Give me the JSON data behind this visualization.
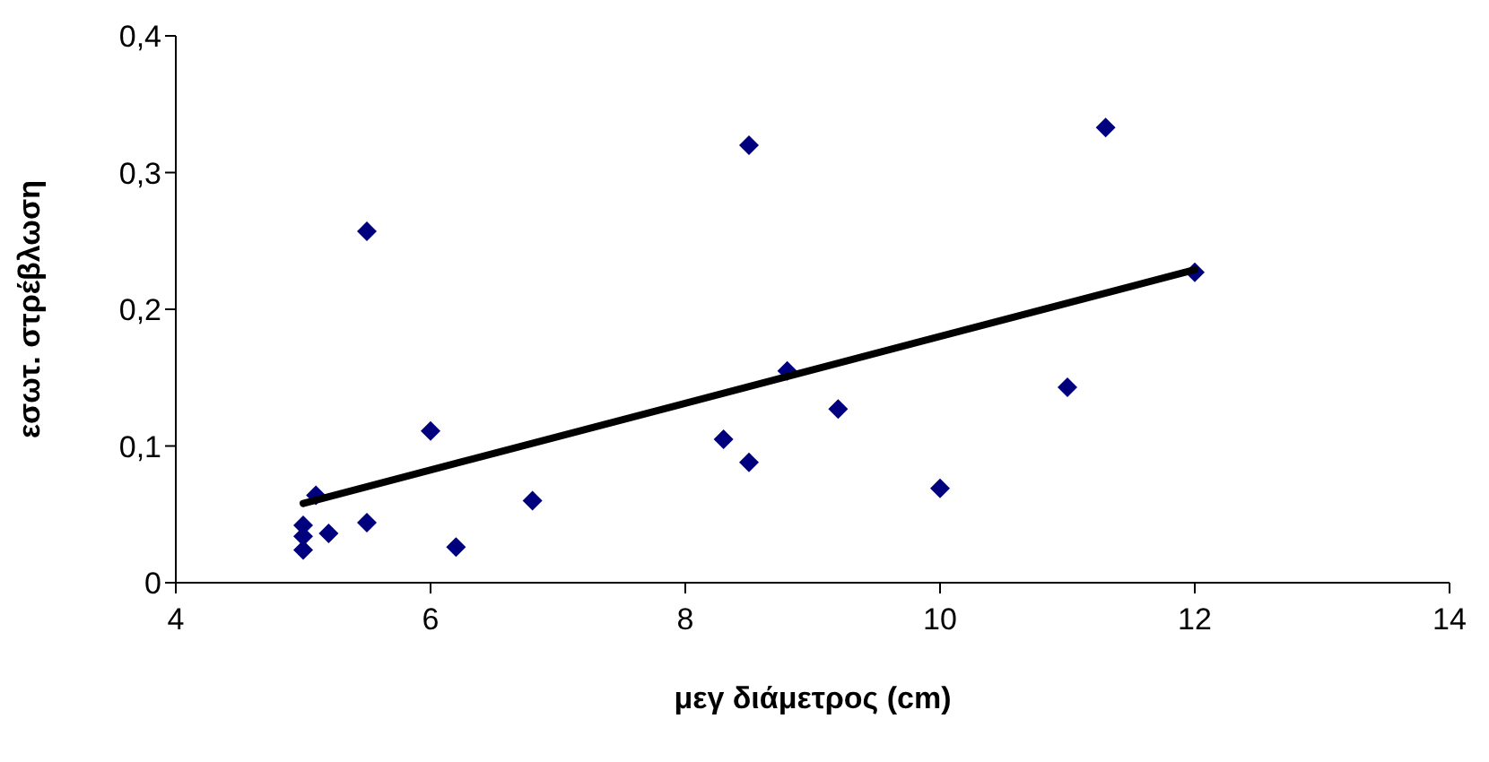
{
  "chart_data": {
    "type": "scatter",
    "xlabel": "μεγ διάμετρος (cm)",
    "ylabel": "εσωτ. στρέβλωση",
    "xlim": [
      4,
      14
    ],
    "xticks": [
      4,
      6,
      8,
      10,
      12,
      14
    ],
    "ylim": [
      0,
      0.4
    ],
    "yticks": [
      0,
      {
        "value": 0.1,
        "label": "0,1"
      },
      {
        "value": 0.2,
        "label": "0,2"
      },
      {
        "value": 0.3,
        "label": "0,3"
      },
      {
        "value": 0.4,
        "label": "0,4"
      }
    ],
    "grid": false,
    "legend": false,
    "marker": "diamond",
    "series": [
      {
        "color": "#00007f",
        "x": [
          5.0,
          5.0,
          5.0,
          5.1,
          5.2,
          5.5,
          5.5,
          6.0,
          6.2,
          6.8,
          8.3,
          8.5,
          8.5,
          8.8,
          9.2,
          10.0,
          11.0,
          11.3,
          12.0
        ],
        "values": [
          0.024,
          0.034,
          0.042,
          0.064,
          0.036,
          0.257,
          0.044,
          0.111,
          0.026,
          0.06,
          0.105,
          0.32,
          0.088,
          0.155,
          0.127,
          0.069,
          0.143,
          0.333,
          0.227
        ]
      },
      {
        "type": "line",
        "color": "#000000",
        "marker": "none",
        "line_style": "solid",
        "x": [
          5.0,
          12.0
        ],
        "values": [
          0.058,
          0.229
        ]
      }
    ]
  }
}
